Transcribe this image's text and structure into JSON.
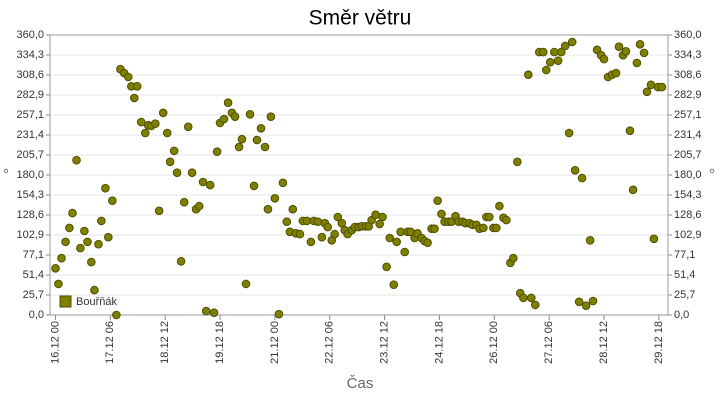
{
  "chart_data": {
    "type": "scatter",
    "title": "Směr větru",
    "xlabel": "Čas",
    "ylabel": "°",
    "legend": "bottom-left",
    "grid": true,
    "xlim": [
      -3,
      335
    ],
    "xticks": [
      {
        "value": 0,
        "label": "16.12 00"
      },
      {
        "value": 30,
        "label": "17.12 06"
      },
      {
        "value": 60,
        "label": "18.12 12"
      },
      {
        "value": 90,
        "label": "19.12 18"
      },
      {
        "value": 120,
        "label": "21.12 00"
      },
      {
        "value": 150,
        "label": "22.12 06"
      },
      {
        "value": 180,
        "label": "23.12 12"
      },
      {
        "value": 210,
        "label": "24.12 18"
      },
      {
        "value": 240,
        "label": "26.12 00"
      },
      {
        "value": 270,
        "label": "27.12 06"
      },
      {
        "value": 300,
        "label": "28.12 12"
      },
      {
        "value": 330,
        "label": "29.12 18"
      }
    ],
    "ylim": [
      0,
      360
    ],
    "yticks": [
      {
        "value": 0,
        "label": "0,0"
      },
      {
        "value": 25.7,
        "label": "25,7"
      },
      {
        "value": 51.4,
        "label": "51,4"
      },
      {
        "value": 77.1,
        "label": "77,1"
      },
      {
        "value": 102.9,
        "label": "102,9"
      },
      {
        "value": 128.6,
        "label": "128,6"
      },
      {
        "value": 154.3,
        "label": "154,3"
      },
      {
        "value": 180,
        "label": "180,0"
      },
      {
        "value": 205.7,
        "label": "205,7"
      },
      {
        "value": 231.4,
        "label": "231,4"
      },
      {
        "value": 257.1,
        "label": "257,1"
      },
      {
        "value": 282.9,
        "label": "282,9"
      },
      {
        "value": 308.6,
        "label": "308,6"
      },
      {
        "value": 334.3,
        "label": "334,3"
      },
      {
        "value": 360,
        "label": "360,0"
      }
    ],
    "series": [
      {
        "name": "Bouřňák",
        "color": "#808000",
        "x": [
          0,
          1.6,
          3.3,
          5.5,
          7.6,
          9.3,
          11.5,
          13.6,
          15.8,
          17.5,
          19.6,
          21.3,
          23.5,
          25.1,
          27.3,
          28.9,
          31.1,
          33.3,
          35.5,
          37.6,
          39.8,
          41.5,
          43.1,
          44.7,
          46.9,
          49.1,
          50.7,
          52.4,
          54.6,
          56.7,
          58.9,
          61.1,
          62.7,
          64.9,
          66.5,
          68.7,
          70.4,
          72.6,
          74.7,
          76.9,
          78.6,
          80.7,
          82.4,
          84.6,
          86.7,
          88.4,
          90,
          92.2,
          94.4,
          96.5,
          98.2,
          100.4,
          102,
          104.2,
          106.4,
          108.6,
          110.2,
          112.4,
          114.6,
          116.2,
          117.8,
          120,
          122.2,
          124.4,
          126.5,
          128.2,
          129.8,
          131.5,
          133.7,
          135.3,
          137.5,
          139.7,
          141.3,
          143.5,
          145.7,
          147.3,
          148.9,
          151.1,
          152.7,
          154.4,
          156.6,
          158.2,
          159.8,
          162,
          163.7,
          165.8,
          167.5,
          169.7,
          171.3,
          172.9,
          175.1,
          177.3,
          178.9,
          181.1,
          182.8,
          185,
          186.6,
          188.8,
          191,
          192.6,
          194.2,
          196.4,
          198,
          200.2,
          201.9,
          203.5,
          205.7,
          207.3,
          209,
          211.1,
          212.8,
          215,
          216.6,
          218.8,
          220.4,
          222.6,
          224.2,
          226.4,
          228,
          230.2,
          231.9,
          234,
          235.7,
          237.3,
          239.5,
          241.1,
          242.8,
          245,
          246.6,
          248.8,
          250.4,
          252.6,
          254.2,
          255.9,
          258.6,
          260.2,
          262.4,
          264.6,
          266.8,
          268.4,
          270.6,
          272.8,
          274.9,
          276.6,
          278.8,
          280.9,
          282.6,
          284.2,
          286.4,
          288,
          290.2,
          292.4,
          294,
          296.2,
          298.4,
          300,
          302.2,
          304.4,
          306.6,
          308.2,
          310.4,
          312,
          314.2,
          315.9,
          318,
          319.7,
          321.9,
          323.5,
          325.7,
          327.3,
          329.5,
          331.7
        ],
        "values": [
          60,
          40,
          73,
          94,
          112,
          131,
          199,
          86,
          108,
          94,
          68,
          32,
          91,
          121,
          163,
          100,
          147,
          0,
          316,
          311,
          306,
          294,
          279,
          294,
          248,
          234,
          244,
          243,
          246,
          134,
          260,
          234,
          197,
          211,
          183,
          69,
          145,
          242,
          183,
          136,
          140,
          171,
          5,
          167,
          3,
          210,
          247,
          252,
          273,
          260,
          255,
          216,
          226,
          40,
          258,
          166,
          225,
          240,
          216,
          136,
          255,
          150,
          1,
          170,
          120,
          107,
          136,
          105,
          104,
          121,
          121,
          94,
          121,
          120,
          100,
          118,
          113,
          96,
          104,
          126,
          118,
          109,
          104,
          109,
          113,
          113,
          114,
          114,
          114,
          122,
          129,
          117,
          126,
          62,
          99,
          39,
          94,
          107,
          81,
          107,
          107,
          99,
          105,
          99,
          95,
          93,
          111,
          111,
          147,
          130,
          120,
          120,
          120,
          127,
          120,
          120,
          118,
          118,
          116,
          116,
          111,
          112,
          126,
          126,
          112,
          112,
          140,
          125,
          122,
          67,
          73,
          197,
          28,
          22,
          309,
          22,
          13,
          338,
          338,
          315,
          325,
          338,
          327,
          338,
          346,
          234,
          351,
          186,
          17,
          176,
          12,
          96,
          18,
          341,
          334,
          329,
          306,
          309,
          311,
          345,
          334,
          339,
          237,
          161,
          324,
          348,
          337,
          287,
          296,
          98,
          293,
          293
        ]
      }
    ]
  }
}
